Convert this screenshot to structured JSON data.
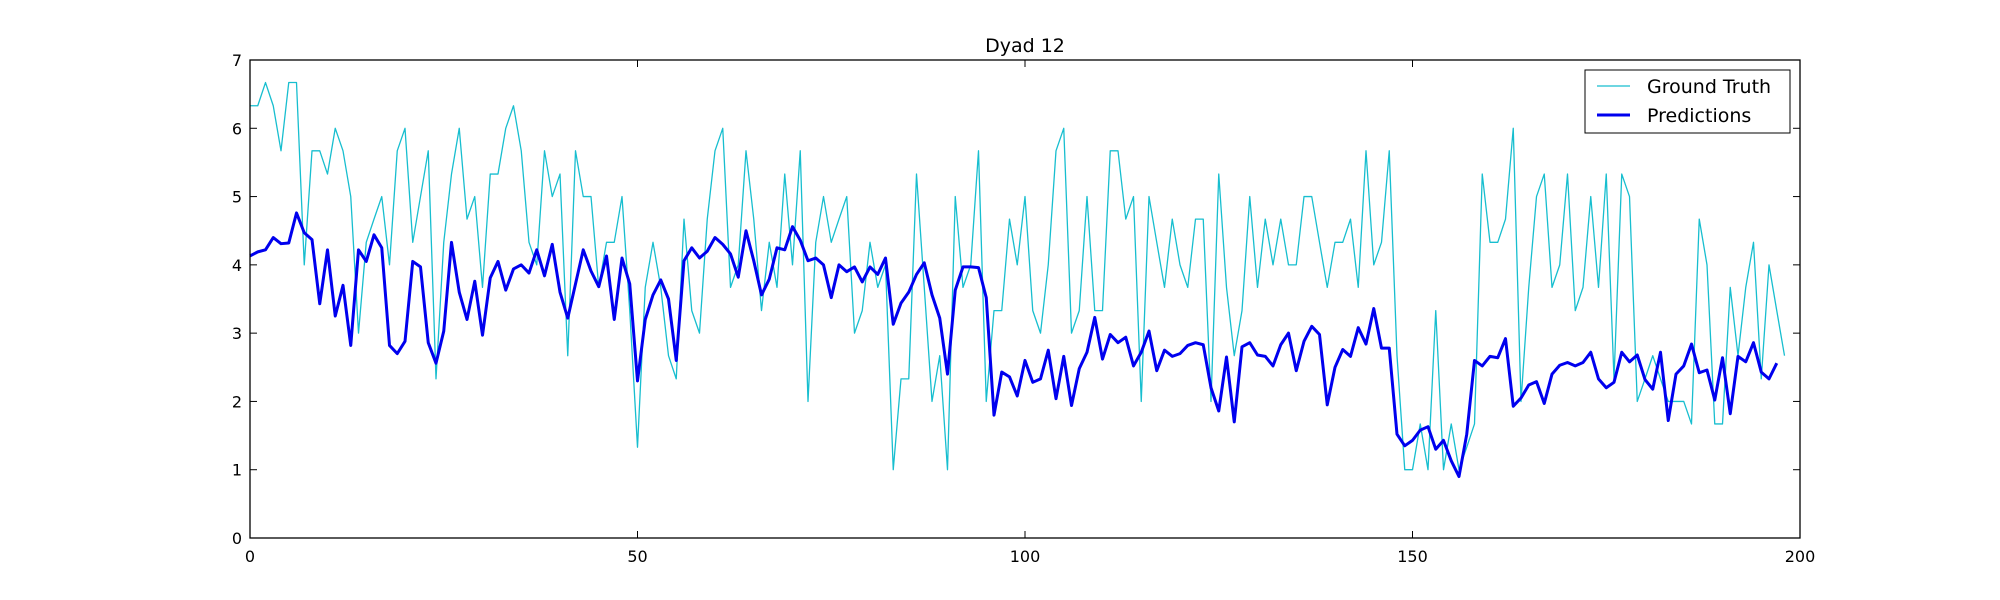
{
  "chart_data": {
    "type": "line",
    "title": "Dyad 12",
    "xlabel": "",
    "ylabel": "",
    "xlim": [
      0,
      200
    ],
    "ylim": [
      0,
      7
    ],
    "xticks": [
      0,
      50,
      100,
      150,
      200
    ],
    "yticks": [
      0,
      1,
      2,
      3,
      4,
      5,
      6,
      7
    ],
    "grid": false,
    "legend_position": "top-right",
    "series": [
      {
        "name": "Ground Truth",
        "color": "#17becf",
        "line_width": "thin",
        "values": [
          6.33,
          6.33,
          6.67,
          6.33,
          5.67,
          6.67,
          6.67,
          4.0,
          5.67,
          5.67,
          5.33,
          6.0,
          5.67,
          5.0,
          3.0,
          4.33,
          4.67,
          5.0,
          4.0,
          5.67,
          6.0,
          4.33,
          5.0,
          5.67,
          2.33,
          4.33,
          5.33,
          6.0,
          4.67,
          5.0,
          3.67,
          5.33,
          5.33,
          6.0,
          6.33,
          5.67,
          4.33,
          4.0,
          5.67,
          5.0,
          5.33,
          2.67,
          5.67,
          5.0,
          5.0,
          3.67,
          4.33,
          4.33,
          5.0,
          3.33,
          1.33,
          3.67,
          4.33,
          3.67,
          2.67,
          2.33,
          4.67,
          3.33,
          3.0,
          4.67,
          5.67,
          6.0,
          3.67,
          4.0,
          5.67,
          4.67,
          3.33,
          4.33,
          3.67,
          5.33,
          4.0,
          5.67,
          2.0,
          4.33,
          5.0,
          4.33,
          4.67,
          5.0,
          3.0,
          3.33,
          4.33,
          3.67,
          4.0,
          1.0,
          2.33,
          2.33,
          5.33,
          3.67,
          2.0,
          2.67,
          1.0,
          5.0,
          3.67,
          4.0,
          5.67,
          2.0,
          3.33,
          3.33,
          4.67,
          4.0,
          5.0,
          3.33,
          3.0,
          4.0,
          5.67,
          6.0,
          3.0,
          3.33,
          5.0,
          3.33,
          3.33,
          5.67,
          5.67,
          4.67,
          5.0,
          2.0,
          5.0,
          4.33,
          3.67,
          4.67,
          4.0,
          3.67,
          4.67,
          4.67,
          2.0,
          5.33,
          3.67,
          2.67,
          3.33,
          5.0,
          3.67,
          4.67,
          4.0,
          4.67,
          4.0,
          4.0,
          5.0,
          5.0,
          4.33,
          3.67,
          4.33,
          4.33,
          4.67,
          3.67,
          5.67,
          4.0,
          4.33,
          5.67,
          2.67,
          1.0,
          1.0,
          1.67,
          1.0,
          3.33,
          1.0,
          1.67,
          1.0,
          1.33,
          1.67,
          5.33,
          4.33,
          4.33,
          4.67,
          6.0,
          2.0,
          3.67,
          5.0,
          5.33,
          3.67,
          4.0,
          5.33,
          3.33,
          3.67,
          5.0,
          3.67,
          5.33,
          2.33,
          5.33,
          5.0,
          2.0,
          2.33,
          2.67,
          2.33,
          2.0,
          2.0,
          2.0,
          1.67,
          4.67,
          4.0,
          1.67,
          1.67,
          3.67,
          2.67,
          3.67,
          4.33,
          2.33,
          4.0,
          3.33,
          2.67
        ]
      },
      {
        "name": "Predictions",
        "color": "#0000ee",
        "line_width": "thick",
        "values": [
          4.13,
          4.19,
          4.22,
          4.4,
          4.31,
          4.32,
          4.76,
          4.47,
          4.37,
          3.43,
          4.22,
          3.25,
          3.7,
          2.82,
          4.22,
          4.05,
          4.44,
          4.25,
          2.82,
          2.7,
          2.88,
          4.05,
          3.97,
          2.86,
          2.56,
          3.03,
          4.33,
          3.6,
          3.2,
          3.76,
          2.97,
          3.81,
          4.05,
          3.63,
          3.94,
          4.0,
          3.88,
          4.22,
          3.84,
          4.3,
          3.6,
          3.22,
          3.72,
          4.22,
          3.91,
          3.68,
          4.13,
          3.2,
          4.1,
          3.72,
          2.3,
          3.2,
          3.56,
          3.78,
          3.5,
          2.6,
          4.06,
          4.25,
          4.1,
          4.2,
          4.4,
          4.3,
          4.16,
          3.82,
          4.5,
          4.06,
          3.56,
          3.79,
          4.25,
          4.22,
          4.56,
          4.36,
          4.06,
          4.1,
          4.0,
          3.52,
          4.0,
          3.9,
          3.97,
          3.75,
          3.97,
          3.86,
          4.1,
          3.13,
          3.44,
          3.6,
          3.86,
          4.03,
          3.56,
          3.22,
          2.4,
          3.63,
          3.97,
          3.97,
          3.96,
          3.52,
          1.8,
          2.43,
          2.36,
          2.08,
          2.6,
          2.28,
          2.33,
          2.75,
          2.04,
          2.66,
          1.94,
          2.48,
          2.72,
          3.23,
          2.62,
          2.98,
          2.86,
          2.94,
          2.52,
          2.72,
          3.03,
          2.45,
          2.75,
          2.66,
          2.7,
          2.82,
          2.86,
          2.83,
          2.2,
          1.86,
          2.65,
          1.7,
          2.8,
          2.86,
          2.68,
          2.66,
          2.52,
          2.83,
          3.0,
          2.45,
          2.88,
          3.1,
          2.98,
          1.95,
          2.5,
          2.76,
          2.66,
          3.08,
          2.84,
          3.36,
          2.78,
          2.78,
          1.52,
          1.35,
          1.43,
          1.58,
          1.63,
          1.3,
          1.43,
          1.13,
          0.9,
          1.52,
          2.6,
          2.52,
          2.66,
          2.64,
          2.92,
          1.93,
          2.05,
          2.24,
          2.29,
          1.97,
          2.4,
          2.53,
          2.57,
          2.52,
          2.57,
          2.72,
          2.33,
          2.2,
          2.28,
          2.72,
          2.58,
          2.68,
          2.32,
          2.18,
          2.72,
          1.72,
          2.4,
          2.52,
          2.84,
          2.42,
          2.46,
          2.02,
          2.64,
          1.82,
          2.66,
          2.58,
          2.86,
          2.43,
          2.33,
          2.56
        ]
      }
    ]
  }
}
